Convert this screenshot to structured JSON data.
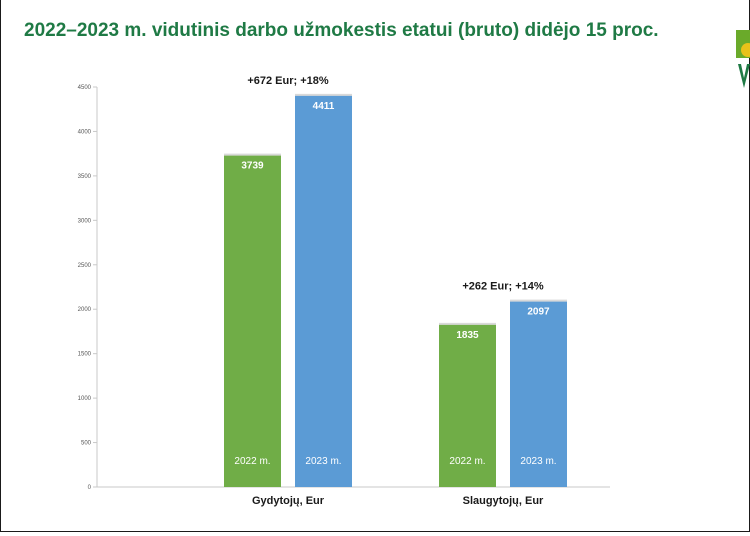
{
  "page": {
    "title": "2022–2023 m. vidutinis darbo užmokestis etatui (bruto) didėjo 15 proc."
  },
  "colors": {
    "title": "#1f7a45",
    "series_2022": "#70ad47",
    "series_2023": "#5b9bd5",
    "logo_green": "#6aaa2a",
    "logo_yellow": "#e8c21a"
  },
  "logo": {
    "icon": "logo-icon"
  },
  "chart_data": {
    "type": "bar",
    "title": "",
    "xlabel": "",
    "ylabel": "",
    "ylim": [
      0,
      4500
    ],
    "yticks": [
      0,
      500,
      1000,
      1500,
      2000,
      2500,
      3000,
      3500,
      4000,
      4500
    ],
    "grid": false,
    "categories": [
      "Gydytojų, Eur",
      "Slaugytojų, Eur"
    ],
    "series": [
      {
        "name": "2022 m.",
        "values": [
          3739,
          1835
        ]
      },
      {
        "name": "2023 m.",
        "values": [
          4411,
          2097
        ]
      }
    ],
    "annotations": [
      "+672 Eur; +18%",
      "+262 Eur; +14%"
    ]
  }
}
